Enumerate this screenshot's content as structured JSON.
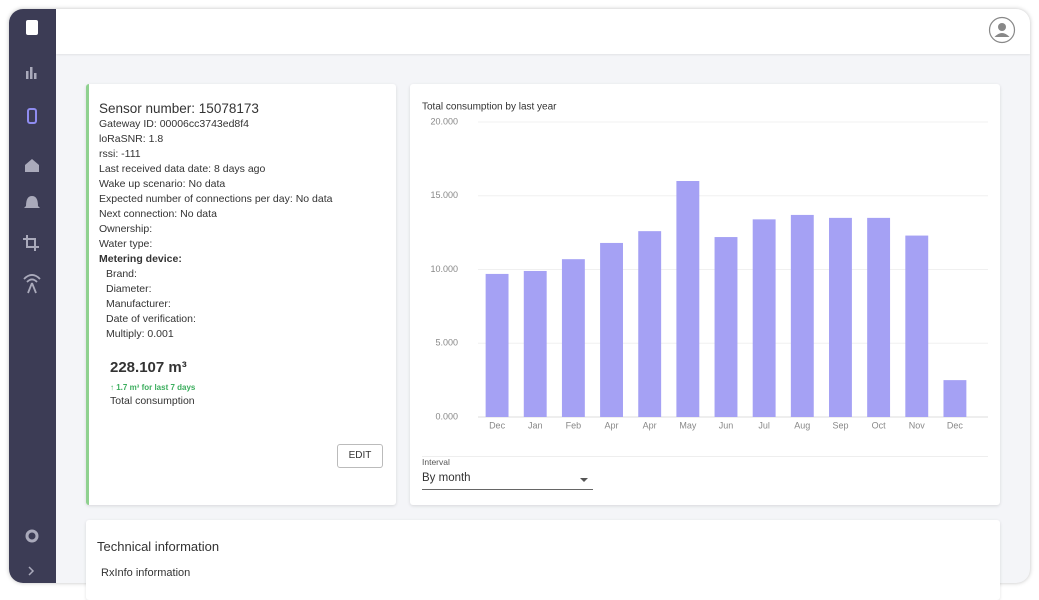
{
  "sensor": {
    "title": "Sensor number: 15078173",
    "fields": [
      "Gateway ID: 00006cc3743ed8f4",
      "loRaSNR: 1.8",
      "rssi: -111",
      "Last received data date: 8 days ago",
      "Wake up scenario: No data",
      "Expected number of connections per day: No data",
      "Next connection: No data",
      "Ownership:",
      "Water type:"
    ],
    "metering_heading": "Metering device:",
    "metering_fields": [
      "Brand:",
      "Diameter:",
      "Manufacturer:",
      "Date of verification:",
      "Multiply: 0.001"
    ],
    "consumption": "228.107 m³",
    "change": "↑ 1.7 m³ for last 7 days",
    "consumption_label": "Total consumption",
    "edit": "EDIT"
  },
  "chart_data": {
    "type": "bar",
    "title": "Total consumption by last year",
    "categories": [
      "Dec",
      "Jan",
      "Feb",
      "Apr",
      "Apr",
      "May",
      "Jun",
      "Jul",
      "Aug",
      "Sep",
      "Oct",
      "Nov",
      "Dec"
    ],
    "values": [
      9700,
      9900,
      10700,
      11800,
      12600,
      16000,
      12200,
      13400,
      13700,
      13500,
      13500,
      12300,
      2500
    ],
    "color": "#a5a1f4",
    "ylim": [
      0,
      20000
    ],
    "yticks": [
      {
        "value": 0,
        "label": "0.000"
      },
      {
        "value": 5000,
        "label": "5.000"
      },
      {
        "value": 10000,
        "label": "10.000"
      },
      {
        "value": 15000,
        "label": "15.000"
      },
      {
        "value": 20000,
        "label": "20.000"
      }
    ],
    "grid": true
  },
  "interval": {
    "label": "Interval",
    "value": "By month"
  },
  "technical": {
    "title": "Technical information",
    "subtitle": "RxInfo information"
  }
}
